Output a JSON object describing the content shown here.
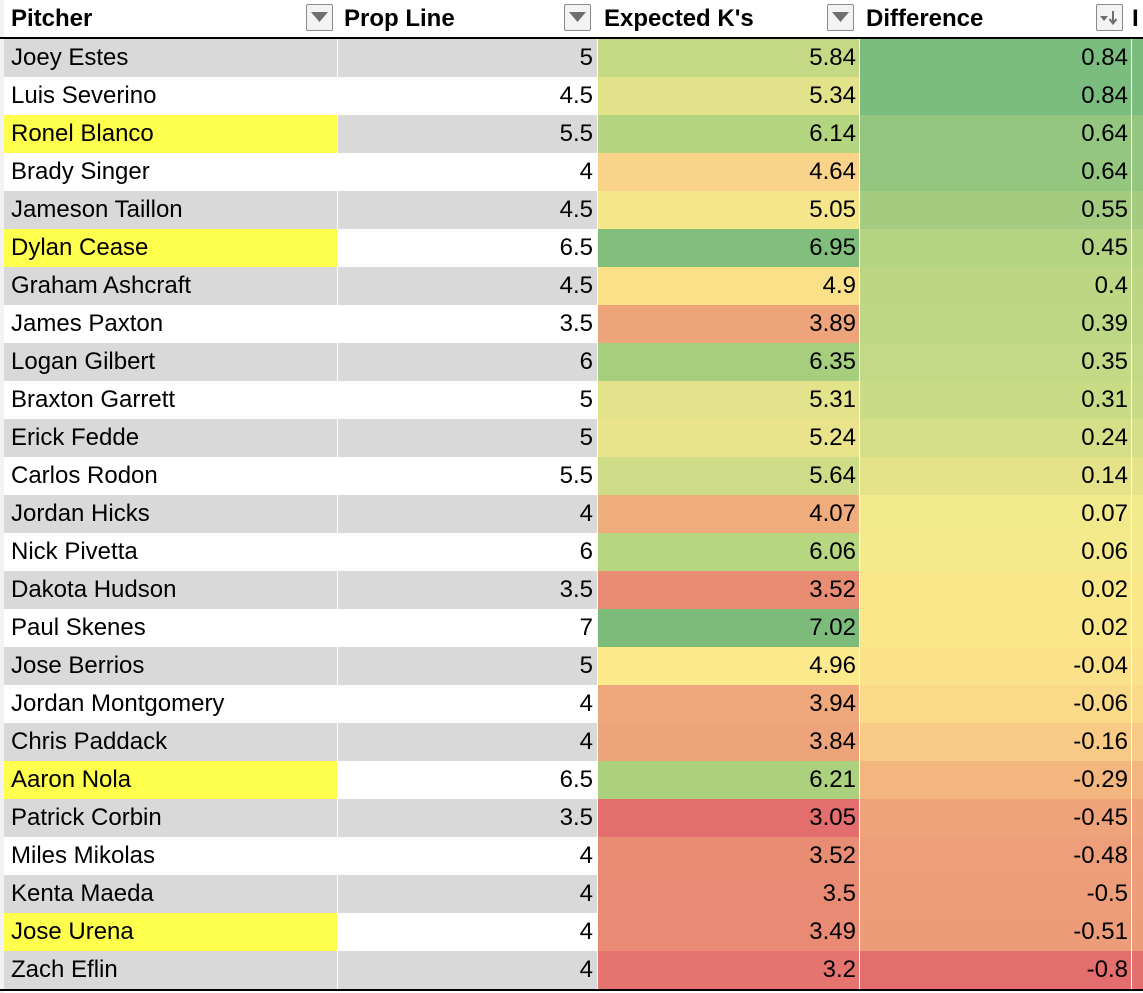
{
  "headers": {
    "pitcher": "Pitcher",
    "prop_line": "Prop Line",
    "expected": "Expected K's",
    "difference": "Difference",
    "extra": "I"
  },
  "colors": {
    "row_gray": "#d9d9d9",
    "row_white": "#ffffff",
    "highlight_yellow": "#ffff4d"
  },
  "rows": [
    {
      "name": "Joey Estes",
      "prop": "5",
      "exp": "5.84",
      "diff": "0.84",
      "shade": "gray",
      "highlight": false,
      "exp_color": "#c5d985",
      "diff_color": "#7bbc7f"
    },
    {
      "name": "Luis Severino",
      "prop": "4.5",
      "exp": "5.34",
      "diff": "0.84",
      "shade": "white",
      "highlight": false,
      "exp_color": "#e2e28b",
      "diff_color": "#7bbc7f"
    },
    {
      "name": "Ronel Blanco",
      "prop": "5.5",
      "exp": "6.14",
      "diff": "0.64",
      "shade": "gray",
      "highlight": true,
      "exp_color": "#b3d57f",
      "diff_color": "#94c67f"
    },
    {
      "name": "Brady Singer",
      "prop": "4",
      "exp": "4.64",
      "diff": "0.64",
      "shade": "white",
      "highlight": false,
      "exp_color": "#f8d389",
      "diff_color": "#94c67f"
    },
    {
      "name": "Jameson Taillon",
      "prop": "4.5",
      "exp": "5.05",
      "diff": "0.55",
      "shade": "gray",
      "highlight": false,
      "exp_color": "#f5e68c",
      "diff_color": "#a3cc81"
    },
    {
      "name": "Dylan Cease",
      "prop": "6.5",
      "exp": "6.95",
      "diff": "0.45",
      "shade": "white",
      "highlight": true,
      "exp_color": "#82be7b",
      "diff_color": "#b4d383"
    },
    {
      "name": "Graham Ashcraft",
      "prop": "4.5",
      "exp": "4.9",
      "diff": "0.4",
      "shade": "gray",
      "highlight": false,
      "exp_color": "#fae089",
      "diff_color": "#bcd684"
    },
    {
      "name": "James Paxton",
      "prop": "3.5",
      "exp": "3.89",
      "diff": "0.39",
      "shade": "white",
      "highlight": false,
      "exp_color": "#eda47a",
      "diff_color": "#bdd784"
    },
    {
      "name": "Logan Gilbert",
      "prop": "6",
      "exp": "6.35",
      "diff": "0.35",
      "shade": "gray",
      "highlight": false,
      "exp_color": "#a6cf7d",
      "diff_color": "#c4d985"
    },
    {
      "name": "Braxton Garrett",
      "prop": "5",
      "exp": "5.31",
      "diff": "0.31",
      "shade": "white",
      "highlight": false,
      "exp_color": "#e3e38b",
      "diff_color": "#cadb86"
    },
    {
      "name": "Erick Fedde",
      "prop": "5",
      "exp": "5.24",
      "diff": "0.24",
      "shade": "gray",
      "highlight": false,
      "exp_color": "#e9e48b",
      "diff_color": "#d5df87"
    },
    {
      "name": "Carlos Rodon",
      "prop": "5.5",
      "exp": "5.64",
      "diff": "0.14",
      "shade": "white",
      "highlight": false,
      "exp_color": "#cfdc87",
      "diff_color": "#e4e38a"
    },
    {
      "name": "Jordan Hicks",
      "prop": "4",
      "exp": "4.07",
      "diff": "0.07",
      "shade": "gray",
      "highlight": false,
      "exp_color": "#efac7c",
      "diff_color": "#f2e98b"
    },
    {
      "name": "Nick Pivetta",
      "prop": "6",
      "exp": "6.06",
      "diff": "0.06",
      "shade": "white",
      "highlight": false,
      "exp_color": "#b7d680",
      "diff_color": "#f4e98b"
    },
    {
      "name": "Dakota Hudson",
      "prop": "3.5",
      "exp": "3.52",
      "diff": "0.02",
      "shade": "gray",
      "highlight": false,
      "exp_color": "#e98c74",
      "diff_color": "#fae789"
    },
    {
      "name": "Paul Skenes",
      "prop": "7",
      "exp": "7.02",
      "diff": "0.02",
      "shade": "white",
      "highlight": false,
      "exp_color": "#7cbb7a",
      "diff_color": "#fae789"
    },
    {
      "name": "Jose Berrios",
      "prop": "5",
      "exp": "4.96",
      "diff": "-0.04",
      "shade": "gray",
      "highlight": false,
      "exp_color": "#fbe98c",
      "diff_color": "#fae18a"
    },
    {
      "name": "Jordan Montgomery",
      "prop": "4",
      "exp": "3.94",
      "diff": "-0.06",
      "shade": "white",
      "highlight": false,
      "exp_color": "#eea87b",
      "diff_color": "#fad989"
    },
    {
      "name": "Chris Paddack",
      "prop": "4",
      "exp": "3.84",
      "diff": "-0.16",
      "shade": "gray",
      "highlight": false,
      "exp_color": "#eda47a",
      "diff_color": "#f8ca85"
    },
    {
      "name": "Aaron Nola",
      "prop": "6.5",
      "exp": "6.21",
      "diff": "-0.29",
      "shade": "white",
      "highlight": true,
      "exp_color": "#acd17e",
      "diff_color": "#f3b67f"
    },
    {
      "name": "Patrick Corbin",
      "prop": "3.5",
      "exp": "3.05",
      "diff": "-0.45",
      "shade": "gray",
      "highlight": false,
      "exp_color": "#e46d6d",
      "diff_color": "#efa37b"
    },
    {
      "name": "Miles Mikolas",
      "prop": "4",
      "exp": "3.52",
      "diff": "-0.48",
      "shade": "white",
      "highlight": false,
      "exp_color": "#e98c74",
      "diff_color": "#ee9f7a"
    },
    {
      "name": "Kenta Maeda",
      "prop": "4",
      "exp": "3.5",
      "diff": "-0.5",
      "shade": "gray",
      "highlight": false,
      "exp_color": "#e98b74",
      "diff_color": "#ed9d79"
    },
    {
      "name": "Jose Urena",
      "prop": "4",
      "exp": "3.49",
      "diff": "-0.51",
      "shade": "white",
      "highlight": true,
      "exp_color": "#e98a74",
      "diff_color": "#ed9c79"
    },
    {
      "name": "Zach Eflin",
      "prop": "4",
      "exp": "3.2",
      "diff": "-0.8",
      "shade": "gray",
      "highlight": false,
      "exp_color": "#e57470",
      "diff_color": "#e46d6d"
    }
  ]
}
